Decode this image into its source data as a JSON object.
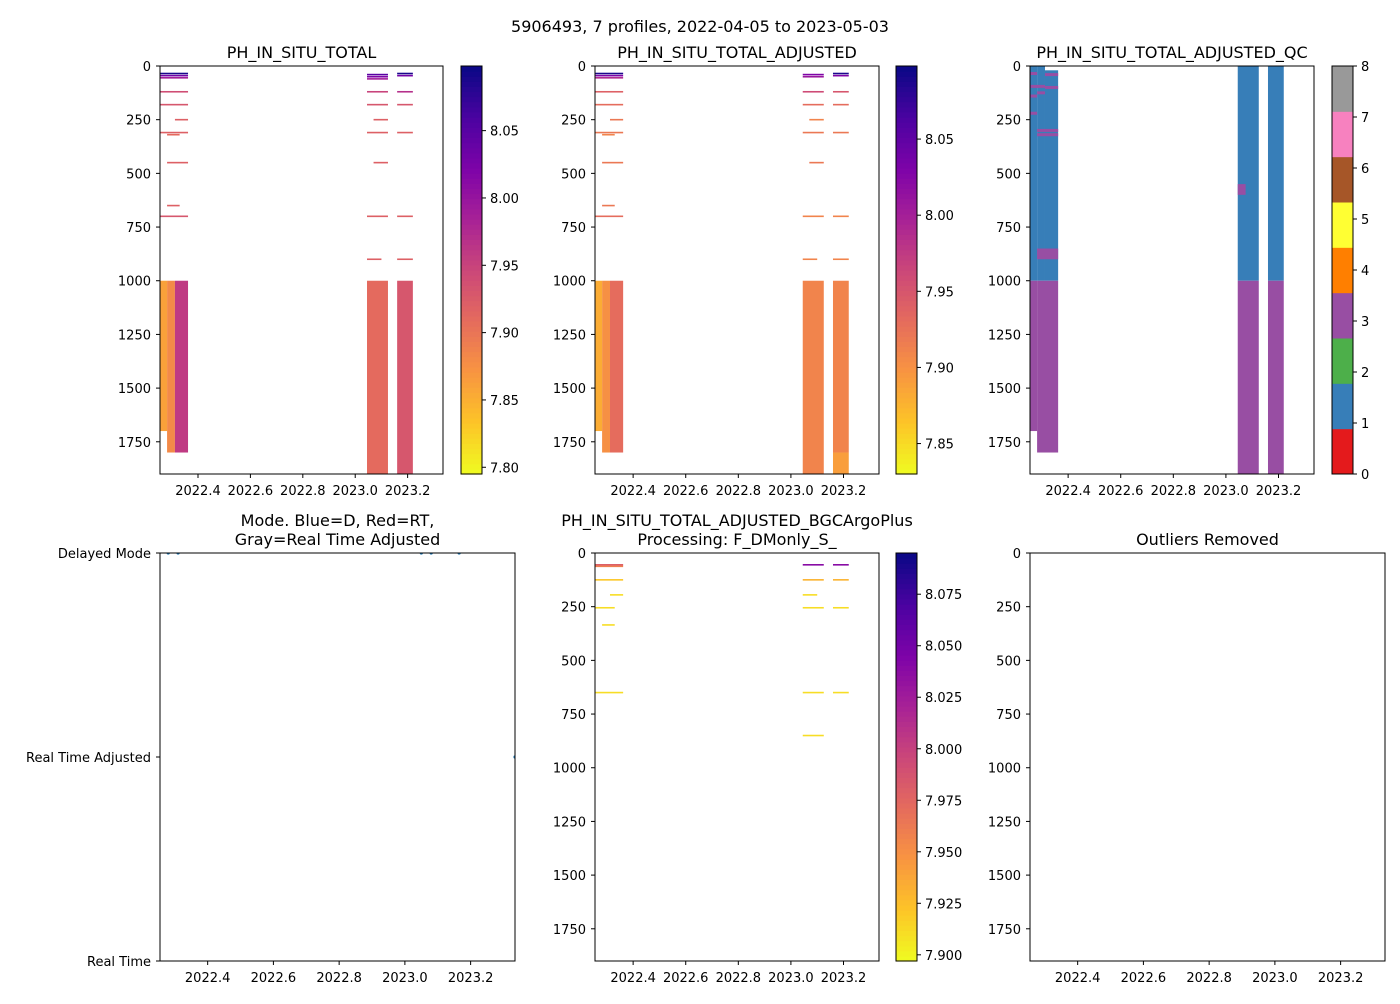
{
  "suptitle": "5906493, 7 profiles, 2022-04-05 to 2023-05-03",
  "colors": {
    "plasma": [
      "#f0f921",
      "#fdc328",
      "#f89441",
      "#e56b5d",
      "#cb4779",
      "#a82296",
      "#7e03a8",
      "#4c02a1",
      "#0d0887"
    ],
    "qc": [
      "#e41a1c",
      "#377eb8",
      "#4daf4a",
      "#984ea3",
      "#ff7f00",
      "#ffff33",
      "#a65628",
      "#f781bf",
      "#999999"
    ],
    "mode_dot": "#1f77b4"
  },
  "chart_data": [
    {
      "id": "ph-in-situ-total",
      "type": "heatmap",
      "title": "PH_IN_SITU_TOTAL",
      "xlim": [
        2022.255,
        2023.335
      ],
      "ylim": [
        1900,
        0
      ],
      "xticks": [
        2022.4,
        2022.6,
        2022.8,
        2023.0,
        2023.2
      ],
      "xtick_labels": [
        "2022.4",
        "2022.6",
        "2022.8",
        "2023.0",
        "2023.2"
      ],
      "yticks": [
        0,
        250,
        500,
        750,
        1000,
        1250,
        1500,
        1750
      ],
      "colorbar": {
        "cmap": "plasma",
        "vmin": 7.795,
        "vmax": 8.098,
        "ticks": [
          7.8,
          7.85,
          7.9,
          7.95,
          8.0,
          8.05
        ],
        "tick_labels": [
          "7.80",
          "7.85",
          "7.90",
          "7.95",
          "8.00",
          "8.05"
        ]
      },
      "cells": [
        {
          "x": 2022.257,
          "w": 0.025,
          "y0": 1000,
          "y1": 1700,
          "v": 7.86
        },
        {
          "x": 2022.282,
          "w": 0.03,
          "y0": 1000,
          "y1": 1800,
          "v": 7.88
        },
        {
          "x": 2022.312,
          "w": 0.05,
          "y0": 1000,
          "y1": 1800,
          "v": 7.96
        },
        {
          "x": 2023.045,
          "w": 0.08,
          "y0": 1000,
          "y1": 1900,
          "v": 7.91
        },
        {
          "x": 2023.16,
          "w": 0.06,
          "y0": 1000,
          "y1": 1900,
          "v": 7.93
        }
      ],
      "lines": [
        {
          "x0": 2022.257,
          "x1": 2022.362,
          "y": 35,
          "v": 8.09
        },
        {
          "x0": 2022.257,
          "x1": 2022.362,
          "y": 45,
          "v": 8.03
        },
        {
          "x0": 2022.257,
          "x1": 2022.362,
          "y": 55,
          "v": 7.99
        },
        {
          "x0": 2022.257,
          "x1": 2022.362,
          "y": 120,
          "v": 7.94
        },
        {
          "x0": 2022.257,
          "x1": 2022.362,
          "y": 180,
          "v": 7.93
        },
        {
          "x0": 2022.312,
          "x1": 2022.362,
          "y": 250,
          "v": 7.92
        },
        {
          "x0": 2022.257,
          "x1": 2022.362,
          "y": 310,
          "v": 7.92
        },
        {
          "x0": 2022.282,
          "x1": 2022.33,
          "y": 320,
          "v": 7.91
        },
        {
          "x0": 2022.282,
          "x1": 2022.362,
          "y": 450,
          "v": 7.92
        },
        {
          "x0": 2022.282,
          "x1": 2022.33,
          "y": 650,
          "v": 7.92
        },
        {
          "x0": 2022.257,
          "x1": 2022.362,
          "y": 700,
          "v": 7.93
        },
        {
          "x0": 2023.045,
          "x1": 2023.125,
          "y": 40,
          "v": 8.05
        },
        {
          "x0": 2023.045,
          "x1": 2023.125,
          "y": 50,
          "v": 8.02
        },
        {
          "x0": 2023.045,
          "x1": 2023.125,
          "y": 60,
          "v": 7.99
        },
        {
          "x0": 2023.16,
          "x1": 2023.22,
          "y": 35,
          "v": 8.09
        },
        {
          "x0": 2023.16,
          "x1": 2023.22,
          "y": 45,
          "v": 8.03
        },
        {
          "x0": 2023.045,
          "x1": 2023.125,
          "y": 120,
          "v": 7.95
        },
        {
          "x0": 2023.16,
          "x1": 2023.22,
          "y": 120,
          "v": 7.97
        },
        {
          "x0": 2023.045,
          "x1": 2023.125,
          "y": 180,
          "v": 7.93
        },
        {
          "x0": 2023.16,
          "x1": 2023.22,
          "y": 180,
          "v": 7.93
        },
        {
          "x0": 2023.07,
          "x1": 2023.125,
          "y": 250,
          "v": 7.92
        },
        {
          "x0": 2023.045,
          "x1": 2023.125,
          "y": 310,
          "v": 7.92
        },
        {
          "x0": 2023.16,
          "x1": 2023.22,
          "y": 310,
          "v": 7.92
        },
        {
          "x0": 2023.07,
          "x1": 2023.125,
          "y": 450,
          "v": 7.92
        },
        {
          "x0": 2023.045,
          "x1": 2023.125,
          "y": 700,
          "v": 7.92
        },
        {
          "x0": 2023.16,
          "x1": 2023.22,
          "y": 700,
          "v": 7.92
        },
        {
          "x0": 2023.045,
          "x1": 2023.1,
          "y": 900,
          "v": 7.92
        },
        {
          "x0": 2023.16,
          "x1": 2023.22,
          "y": 900,
          "v": 7.92
        }
      ]
    },
    {
      "id": "ph-in-situ-total-adjusted",
      "type": "heatmap",
      "title": "PH_IN_SITU_TOTAL_ADJUSTED",
      "xlim": [
        2022.255,
        2023.335
      ],
      "ylim": [
        1900,
        0
      ],
      "xticks": [
        2022.4,
        2022.6,
        2022.8,
        2023.0,
        2023.2
      ],
      "xtick_labels": [
        "2022.4",
        "2022.6",
        "2022.8",
        "2023.0",
        "2023.2"
      ],
      "yticks": [
        0,
        250,
        500,
        750,
        1000,
        1250,
        1500,
        1750
      ],
      "colorbar": {
        "cmap": "plasma",
        "vmin": 7.83,
        "vmax": 8.098,
        "ticks": [
          7.85,
          7.9,
          7.95,
          8.0,
          8.05
        ],
        "tick_labels": [
          "7.85",
          "7.90",
          "7.95",
          "8.00",
          "8.05"
        ]
      },
      "cells": [
        {
          "x": 2022.257,
          "w": 0.025,
          "y0": 1000,
          "y1": 1700,
          "v": 7.88
        },
        {
          "x": 2022.282,
          "w": 0.03,
          "y0": 1000,
          "y1": 1800,
          "v": 7.9
        },
        {
          "x": 2022.312,
          "w": 0.05,
          "y0": 1000,
          "y1": 1800,
          "v": 7.93
        },
        {
          "x": 2023.045,
          "w": 0.08,
          "y0": 1000,
          "y1": 1900,
          "v": 7.91
        },
        {
          "x": 2023.16,
          "w": 0.06,
          "y0": 1000,
          "y1": 1800,
          "v": 7.91
        },
        {
          "x": 2023.16,
          "w": 0.06,
          "y0": 1800,
          "y1": 1900,
          "v": 7.89
        }
      ],
      "lines": [
        {
          "x0": 2022.257,
          "x1": 2022.362,
          "y": 35,
          "v": 8.09
        },
        {
          "x0": 2022.257,
          "x1": 2022.362,
          "y": 45,
          "v": 8.03
        },
        {
          "x0": 2022.257,
          "x1": 2022.362,
          "y": 55,
          "v": 7.99
        },
        {
          "x0": 2022.257,
          "x1": 2022.362,
          "y": 120,
          "v": 7.94
        },
        {
          "x0": 2022.257,
          "x1": 2022.362,
          "y": 180,
          "v": 7.93
        },
        {
          "x0": 2022.312,
          "x1": 2022.362,
          "y": 250,
          "v": 7.92
        },
        {
          "x0": 2022.257,
          "x1": 2022.362,
          "y": 310,
          "v": 7.92
        },
        {
          "x0": 2022.282,
          "x1": 2022.33,
          "y": 320,
          "v": 7.91
        },
        {
          "x0": 2022.282,
          "x1": 2022.362,
          "y": 450,
          "v": 7.92
        },
        {
          "x0": 2022.282,
          "x1": 2022.33,
          "y": 650,
          "v": 7.92
        },
        {
          "x0": 2022.257,
          "x1": 2022.362,
          "y": 700,
          "v": 7.93
        },
        {
          "x0": 2023.045,
          "x1": 2023.125,
          "y": 40,
          "v": 8.03
        },
        {
          "x0": 2023.045,
          "x1": 2023.125,
          "y": 50,
          "v": 8.01
        },
        {
          "x0": 2023.16,
          "x1": 2023.22,
          "y": 35,
          "v": 8.09
        },
        {
          "x0": 2023.16,
          "x1": 2023.22,
          "y": 45,
          "v": 8.03
        },
        {
          "x0": 2023.045,
          "x1": 2023.125,
          "y": 120,
          "v": 7.96
        },
        {
          "x0": 2023.16,
          "x1": 2023.22,
          "y": 120,
          "v": 7.95
        },
        {
          "x0": 2023.045,
          "x1": 2023.125,
          "y": 180,
          "v": 7.93
        },
        {
          "x0": 2023.16,
          "x1": 2023.22,
          "y": 180,
          "v": 7.93
        },
        {
          "x0": 2023.07,
          "x1": 2023.125,
          "y": 250,
          "v": 7.91
        },
        {
          "x0": 2023.045,
          "x1": 2023.125,
          "y": 310,
          "v": 7.92
        },
        {
          "x0": 2023.16,
          "x1": 2023.22,
          "y": 310,
          "v": 7.92
        },
        {
          "x0": 2023.07,
          "x1": 2023.125,
          "y": 450,
          "v": 7.92
        },
        {
          "x0": 2023.045,
          "x1": 2023.125,
          "y": 700,
          "v": 7.91
        },
        {
          "x0": 2023.16,
          "x1": 2023.22,
          "y": 700,
          "v": 7.91
        },
        {
          "x0": 2023.045,
          "x1": 2023.1,
          "y": 900,
          "v": 7.91
        },
        {
          "x0": 2023.16,
          "x1": 2023.22,
          "y": 900,
          "v": 7.91
        }
      ]
    },
    {
      "id": "ph-in-situ-total-adjusted-qc",
      "type": "heatmap",
      "title": "PH_IN_SITU_TOTAL_ADJUSTED_QC",
      "xlim": [
        2022.255,
        2023.335
      ],
      "ylim": [
        1900,
        0
      ],
      "xticks": [
        2022.4,
        2022.6,
        2022.8,
        2023.0,
        2023.2
      ],
      "xtick_labels": [
        "2022.4",
        "2022.6",
        "2022.8",
        "2023.0",
        "2023.2"
      ],
      "yticks": [
        0,
        250,
        500,
        750,
        1000,
        1250,
        1500,
        1750
      ],
      "colorbar": {
        "cmap": "qc",
        "vmin": 0,
        "vmax": 8,
        "ticks": [
          0,
          1,
          2,
          3,
          4,
          5,
          6,
          7,
          8
        ],
        "tick_labels": [
          "0",
          "1",
          "2",
          "3",
          "4",
          "5",
          "6",
          "7",
          "8"
        ]
      },
      "cells": [
        {
          "x": 2022.257,
          "w": 0.025,
          "y0": 0,
          "y1": 1000,
          "v": 1
        },
        {
          "x": 2022.282,
          "w": 0.03,
          "y0": 0,
          "y1": 1000,
          "v": 1
        },
        {
          "x": 2022.312,
          "w": 0.05,
          "y0": 20,
          "y1": 1000,
          "v": 1
        },
        {
          "x": 2022.257,
          "w": 0.025,
          "y0": 1000,
          "y1": 1700,
          "v": 3
        },
        {
          "x": 2022.282,
          "w": 0.08,
          "y0": 1000,
          "y1": 1800,
          "v": 3
        },
        {
          "x": 2022.282,
          "w": 0.08,
          "y0": 850,
          "y1": 900,
          "v": 3
        },
        {
          "x": 2023.045,
          "w": 0.08,
          "y0": 0,
          "y1": 1000,
          "v": 1
        },
        {
          "x": 2023.16,
          "w": 0.06,
          "y0": 0,
          "y1": 1000,
          "v": 1
        },
        {
          "x": 2023.045,
          "w": 0.08,
          "y0": 1000,
          "y1": 1900,
          "v": 3
        },
        {
          "x": 2023.16,
          "w": 0.06,
          "y0": 1000,
          "y1": 1900,
          "v": 3
        },
        {
          "x": 2023.045,
          "w": 0.03,
          "y0": 550,
          "y1": 600,
          "v": 3
        }
      ],
      "lines": [
        {
          "x0": 2022.257,
          "x1": 2022.282,
          "y": 35,
          "v": 3
        },
        {
          "x0": 2022.312,
          "x1": 2022.362,
          "y": 40,
          "v": 3
        },
        {
          "x0": 2022.257,
          "x1": 2022.312,
          "y": 95,
          "v": 3
        },
        {
          "x0": 2022.312,
          "x1": 2022.362,
          "y": 100,
          "v": 3
        },
        {
          "x0": 2022.257,
          "x1": 2022.282,
          "y": 140,
          "v": 3
        },
        {
          "x0": 2022.282,
          "x1": 2022.312,
          "y": 125,
          "v": 3
        },
        {
          "x0": 2022.257,
          "x1": 2022.282,
          "y": 220,
          "v": 3
        },
        {
          "x0": 2022.282,
          "x1": 2022.362,
          "y": 300,
          "v": 3
        },
        {
          "x0": 2022.282,
          "x1": 2022.362,
          "y": 320,
          "v": 3
        }
      ]
    },
    {
      "id": "mode",
      "type": "scatter",
      "title_lines": [
        "Mode. Blue=D, Red=RT,",
        "Gray=Real Time Adjusted"
      ],
      "xlim": [
        2022.255,
        2023.335
      ],
      "ylim": [
        0,
        2
      ],
      "xticks": [
        2022.4,
        2022.6,
        2022.8,
        2023.0,
        2023.2
      ],
      "xtick_labels": [
        "2022.4",
        "2022.6",
        "2022.8",
        "2023.0",
        "2023.2"
      ],
      "yticks": [
        0,
        1,
        2
      ],
      "ytick_labels": [
        "Real Time",
        "Real Time Adjusted",
        "Delayed Mode"
      ],
      "points": [
        {
          "x": 2022.28,
          "y": 2,
          "color": "#1f77b4"
        },
        {
          "x": 2022.31,
          "y": 2,
          "color": "#1f77b4"
        },
        {
          "x": 2023.05,
          "y": 2,
          "color": "#1f77b4"
        },
        {
          "x": 2023.08,
          "y": 2,
          "color": "#1f77b4"
        },
        {
          "x": 2023.165,
          "y": 2,
          "color": "#1f77b4"
        },
        {
          "x": 2023.335,
          "y": 1,
          "color": "#1f77b4"
        }
      ]
    },
    {
      "id": "ph-bgcargoplus",
      "type": "heatmap",
      "title_lines": [
        "PH_IN_SITU_TOTAL_ADJUSTED_BGCArgoPlus",
        "Processing: F_DMonly_S_"
      ],
      "xlim": [
        2022.255,
        2023.335
      ],
      "ylim": [
        1900,
        0
      ],
      "xticks": [
        2022.4,
        2022.6,
        2022.8,
        2023.0,
        2023.2
      ],
      "xtick_labels": [
        "2022.4",
        "2022.6",
        "2022.8",
        "2023.0",
        "2023.2"
      ],
      "yticks": [
        0,
        250,
        500,
        750,
        1000,
        1250,
        1500,
        1750
      ],
      "colorbar": {
        "cmap": "plasma",
        "vmin": 7.897,
        "vmax": 8.095,
        "ticks": [
          7.9,
          7.925,
          7.95,
          7.975,
          8.0,
          8.025,
          8.05,
          8.075
        ],
        "tick_labels": [
          "7.900",
          "7.925",
          "7.950",
          "7.975",
          "8.000",
          "8.025",
          "8.050",
          "8.075"
        ]
      },
      "cells": [],
      "lines": [
        {
          "x0": 2022.257,
          "x1": 2022.362,
          "y": 55,
          "v": 7.98
        },
        {
          "x0": 2022.257,
          "x1": 2022.362,
          "y": 62,
          "v": 7.96
        },
        {
          "x0": 2022.257,
          "x1": 2022.362,
          "y": 125,
          "v": 7.92
        },
        {
          "x0": 2022.312,
          "x1": 2022.362,
          "y": 195,
          "v": 7.91
        },
        {
          "x0": 2022.257,
          "x1": 2022.33,
          "y": 255,
          "v": 7.91
        },
        {
          "x0": 2022.282,
          "x1": 2022.33,
          "y": 335,
          "v": 7.91
        },
        {
          "x0": 2022.257,
          "x1": 2022.362,
          "y": 650,
          "v": 7.91
        },
        {
          "x0": 2023.045,
          "x1": 2023.125,
          "y": 55,
          "v": 8.04
        },
        {
          "x0": 2023.16,
          "x1": 2023.22,
          "y": 55,
          "v": 8.04
        },
        {
          "x0": 2023.045,
          "x1": 2023.125,
          "y": 125,
          "v": 7.93
        },
        {
          "x0": 2023.16,
          "x1": 2023.22,
          "y": 125,
          "v": 7.93
        },
        {
          "x0": 2023.045,
          "x1": 2023.1,
          "y": 195,
          "v": 7.91
        },
        {
          "x0": 2023.045,
          "x1": 2023.125,
          "y": 255,
          "v": 7.91
        },
        {
          "x0": 2023.16,
          "x1": 2023.22,
          "y": 255,
          "v": 7.91
        },
        {
          "x0": 2023.045,
          "x1": 2023.125,
          "y": 650,
          "v": 7.91
        },
        {
          "x0": 2023.16,
          "x1": 2023.22,
          "y": 650,
          "v": 7.91
        },
        {
          "x0": 2023.045,
          "x1": 2023.125,
          "y": 850,
          "v": 7.91
        }
      ]
    },
    {
      "id": "outliers-removed",
      "type": "scatter",
      "title": "Outliers Removed",
      "xlim": [
        2022.255,
        2023.335
      ],
      "ylim": [
        1900,
        0
      ],
      "xticks": [
        2022.4,
        2022.6,
        2022.8,
        2023.0,
        2023.2
      ],
      "xtick_labels": [
        "2022.4",
        "2022.6",
        "2022.8",
        "2023.0",
        "2023.2"
      ],
      "yticks": [
        0,
        250,
        500,
        750,
        1000,
        1250,
        1500,
        1750
      ],
      "points": []
    }
  ]
}
